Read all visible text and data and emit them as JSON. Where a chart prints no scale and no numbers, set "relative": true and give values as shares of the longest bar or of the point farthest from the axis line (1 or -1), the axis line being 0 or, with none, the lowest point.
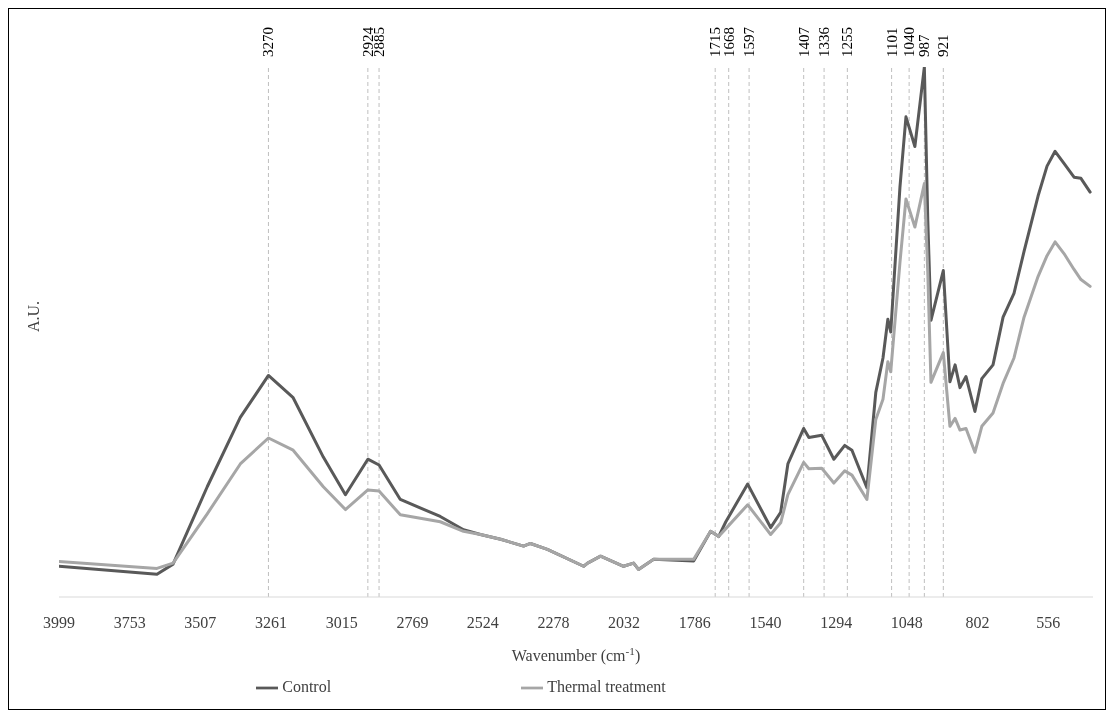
{
  "chart_data": {
    "type": "line",
    "relative": true,
    "xlabel": "Wavenumber (cm$^{-1}$)",
    "ylabel": "A.U.",
    "x": [
      3999,
      3658,
      3602,
      3483,
      3368,
      3270,
      3184,
      3079,
      3002,
      2924,
      2885,
      2811,
      2672,
      2591,
      2532,
      2462,
      2382,
      2358,
      2299,
      2173,
      2159,
      2114,
      2034,
      1999,
      1982,
      1929,
      1790,
      1731,
      1703,
      1678,
      1602,
      1522,
      1487,
      1462,
      1407,
      1389,
      1344,
      1302,
      1264,
      1239,
      1187,
      1156,
      1131,
      1114,
      1104,
      1072,
      1051,
      1020,
      987,
      975,
      964,
      921,
      898,
      880,
      863,
      842,
      811,
      787,
      748,
      713,
      675,
      640,
      591,
      560,
      532,
      501,
      466,
      442,
      410
    ],
    "xlim": [
      3999,
      400
    ],
    "xticks": [
      3999,
      3753,
      3507,
      3261,
      3015,
      2769,
      2524,
      2278,
      2032,
      1786,
      1540,
      1294,
      1048,
      802,
      556
    ],
    "series": [
      {
        "name": "Control",
        "color": "#595959",
        "values": [
          0.058,
          0.043,
          0.062,
          0.208,
          0.339,
          0.418,
          0.376,
          0.264,
          0.193,
          0.26,
          0.249,
          0.184,
          0.152,
          0.127,
          0.118,
          0.109,
          0.096,
          0.101,
          0.09,
          0.058,
          0.064,
          0.077,
          0.058,
          0.064,
          0.052,
          0.071,
          0.068,
          0.124,
          0.114,
          0.142,
          0.213,
          0.131,
          0.16,
          0.251,
          0.318,
          0.301,
          0.305,
          0.26,
          0.286,
          0.277,
          0.206,
          0.386,
          0.451,
          0.524,
          0.5,
          0.773,
          0.906,
          0.85,
          1,
          0.71,
          0.522,
          0.616,
          0.406,
          0.438,
          0.395,
          0.416,
          0.35,
          0.412,
          0.438,
          0.528,
          0.573,
          0.652,
          0.757,
          0.813,
          0.841,
          0.818,
          0.792,
          0.79,
          0.764
        ]
      },
      {
        "name": "Thermal treatment",
        "color": "#a6a6a6",
        "values": [
          0.067,
          0.054,
          0.064,
          0.157,
          0.251,
          0.3,
          0.277,
          0.208,
          0.165,
          0.202,
          0.2,
          0.155,
          0.142,
          0.124,
          0.118,
          0.109,
          0.096,
          0.101,
          0.09,
          0.058,
          0.064,
          0.077,
          0.058,
          0.064,
          0.052,
          0.071,
          0.071,
          0.124,
          0.114,
          0.129,
          0.174,
          0.118,
          0.14,
          0.193,
          0.254,
          0.242,
          0.243,
          0.215,
          0.238,
          0.23,
          0.184,
          0.335,
          0.373,
          0.444,
          0.425,
          0.631,
          0.751,
          0.698,
          0.78,
          0.612,
          0.405,
          0.461,
          0.322,
          0.337,
          0.315,
          0.318,
          0.273,
          0.322,
          0.347,
          0.403,
          0.451,
          0.528,
          0.605,
          0.644,
          0.67,
          0.648,
          0.618,
          0.599,
          0.586
        ]
      }
    ],
    "ref_lines": [
      {
        "axis": "x",
        "value": 3270,
        "label": "3270",
        "color": "#bfbfbf",
        "line_style": "dashed"
      },
      {
        "axis": "x",
        "value": 2924,
        "label": "2924",
        "color": "#bfbfbf",
        "line_style": "dashed"
      },
      {
        "axis": "x",
        "value": 2885,
        "label": "2885",
        "color": "#bfbfbf",
        "line_style": "dashed"
      },
      {
        "axis": "x",
        "value": 1715,
        "label": "1715",
        "color": "#bfbfbf",
        "line_style": "dashed"
      },
      {
        "axis": "x",
        "value": 1668,
        "label": "1668",
        "color": "#bfbfbf",
        "line_style": "dashed"
      },
      {
        "axis": "x",
        "value": 1597,
        "label": "1597",
        "color": "#bfbfbf",
        "line_style": "dashed"
      },
      {
        "axis": "x",
        "value": 1407,
        "label": "1407",
        "color": "#bfbfbf",
        "line_style": "dashed"
      },
      {
        "axis": "x",
        "value": 1336,
        "label": "1336",
        "color": "#bfbfbf",
        "line_style": "dashed"
      },
      {
        "axis": "x",
        "value": 1255,
        "label": "1255",
        "color": "#bfbfbf",
        "line_style": "dashed"
      },
      {
        "axis": "x",
        "value": 1101,
        "label": "1101",
        "color": "#bfbfbf",
        "line_style": "dashed"
      },
      {
        "axis": "x",
        "value": 1040,
        "label": "1040",
        "color": "#bfbfbf",
        "line_style": "dashed"
      },
      {
        "axis": "x",
        "value": 987,
        "label": "987",
        "color": "#bfbfbf",
        "line_style": "dashed"
      },
      {
        "axis": "x",
        "value": 921,
        "label": "921",
        "color": "#bfbfbf",
        "line_style": "dashed"
      }
    ],
    "legend": "bottom",
    "marker": "none",
    "line_style": "solid"
  }
}
